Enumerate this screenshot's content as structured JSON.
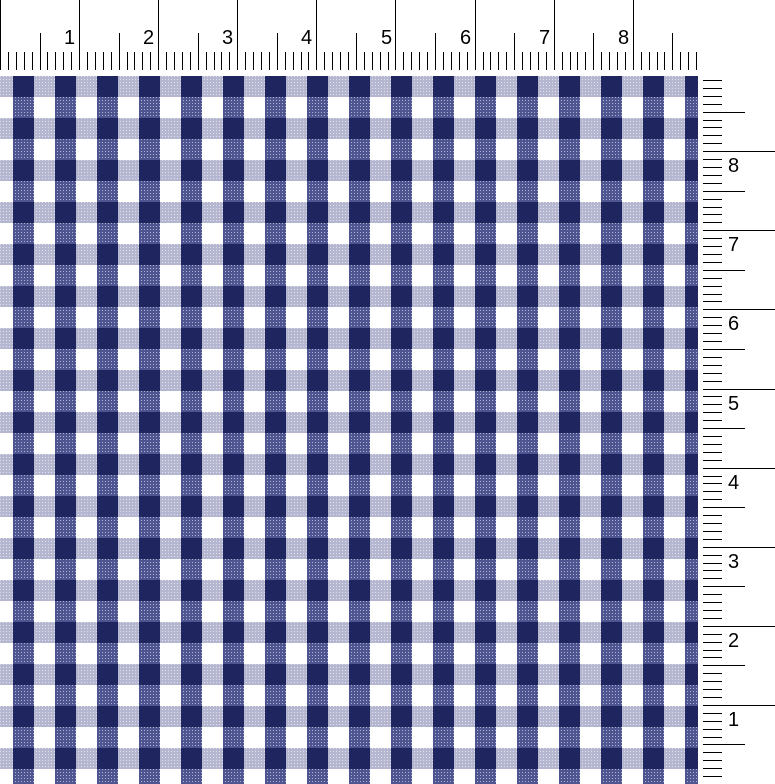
{
  "top_ruler": {
    "unit": "inch",
    "labels": [
      "1",
      "2",
      "3",
      "4",
      "5",
      "6",
      "7",
      "8"
    ]
  },
  "right_ruler": {
    "unit": "inch",
    "labels": [
      "1",
      "2",
      "3",
      "4",
      "5",
      "6",
      "7",
      "8"
    ]
  },
  "swatch": {
    "pattern": "gingham check",
    "colors": {
      "intersection": "#1f255e",
      "vertical_stripe": "#4f5590",
      "horizontal_stripe": "#b4b7cf",
      "ground": "#ffffff"
    }
  }
}
